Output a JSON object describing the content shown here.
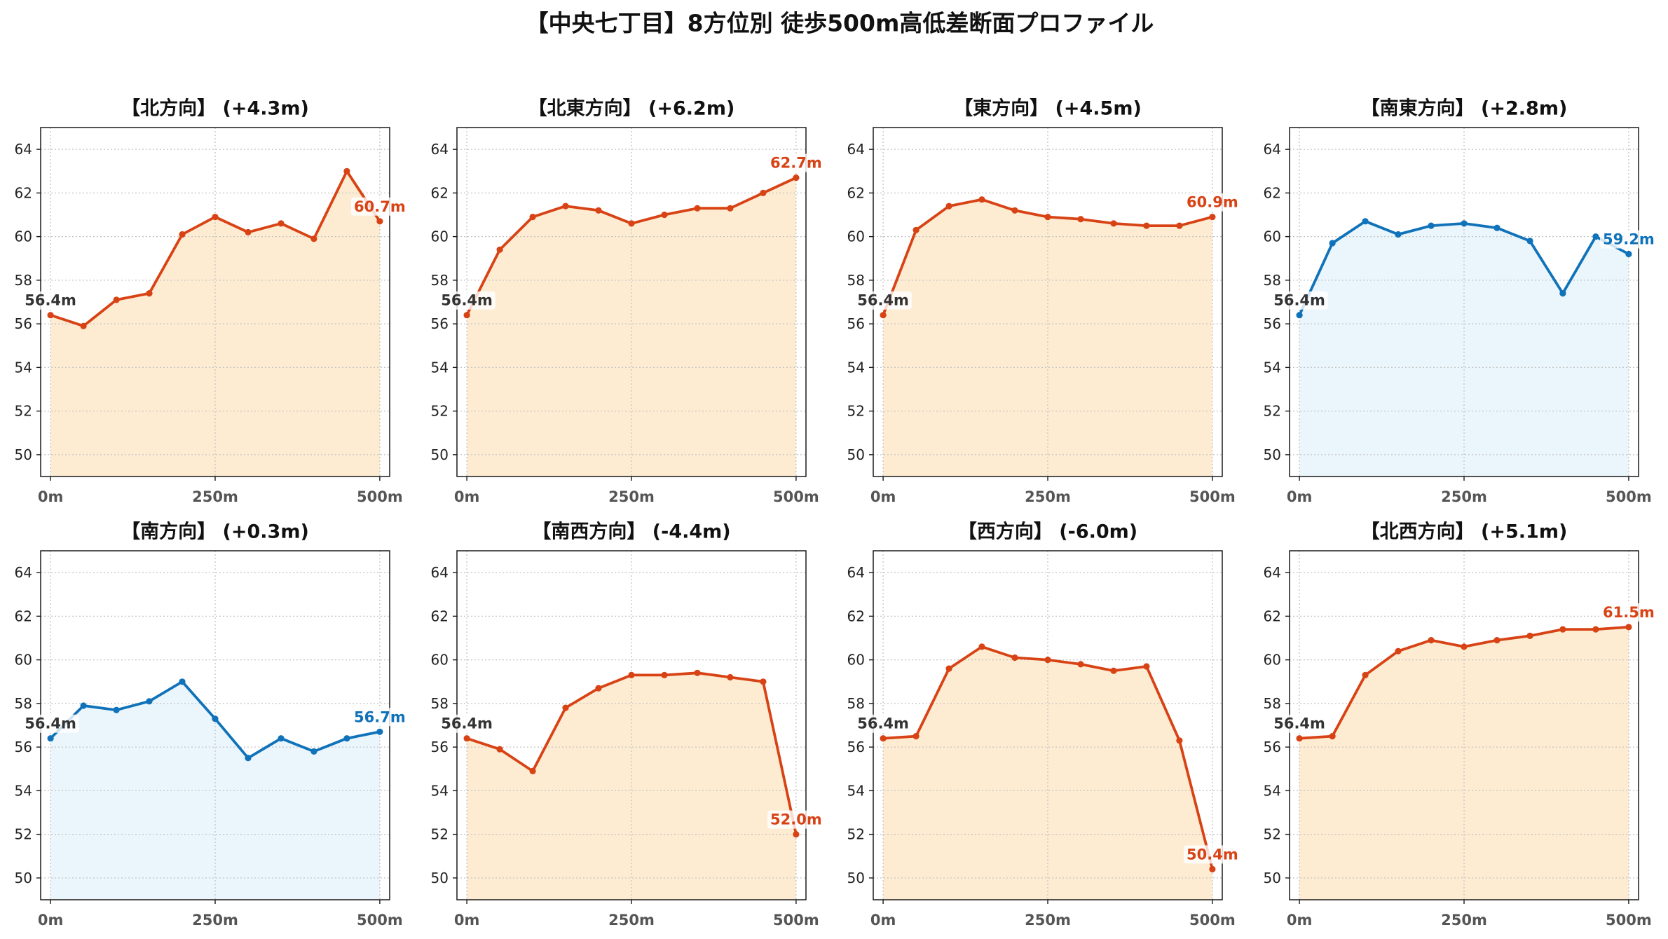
{
  "title": "【中央七丁目】8方位別 徒歩500m高低差断面プロファイル",
  "chart_data": [
    {
      "type": "area",
      "title": "【北方向】 (+4.3m)",
      "x": [
        0,
        50,
        100,
        150,
        200,
        250,
        300,
        350,
        400,
        450,
        500
      ],
      "values": [
        56.4,
        55.9,
        57.1,
        57.4,
        60.1,
        60.9,
        60.2,
        60.6,
        59.9,
        63.0,
        60.7
      ],
      "xlim": [
        -15,
        515
      ],
      "ylim": [
        49,
        65
      ],
      "x_ticks": [
        0,
        250,
        500
      ],
      "x_tick_labels": [
        "0m",
        "250m",
        "500m"
      ],
      "y_ticks": [
        50,
        52,
        54,
        56,
        58,
        60,
        62,
        64
      ],
      "start_label": "56.4m",
      "end_label": "60.7m",
      "color": "#d84315",
      "fill_color": "#fdecd2",
      "grid": true
    },
    {
      "type": "area",
      "title": "【北東方向】 (+6.2m)",
      "x": [
        0,
        50,
        100,
        150,
        200,
        250,
        300,
        350,
        400,
        450,
        500
      ],
      "values": [
        56.4,
        59.4,
        60.9,
        61.4,
        61.2,
        60.6,
        61.0,
        61.3,
        61.3,
        62.0,
        62.7
      ],
      "xlim": [
        -15,
        515
      ],
      "ylim": [
        49,
        65
      ],
      "x_ticks": [
        0,
        250,
        500
      ],
      "x_tick_labels": [
        "0m",
        "250m",
        "500m"
      ],
      "y_ticks": [
        50,
        52,
        54,
        56,
        58,
        60,
        62,
        64
      ],
      "start_label": "56.4m",
      "end_label": "62.7m",
      "color": "#d84315",
      "fill_color": "#fdecd2",
      "grid": true
    },
    {
      "type": "area",
      "title": "【東方向】 (+4.5m)",
      "x": [
        0,
        50,
        100,
        150,
        200,
        250,
        300,
        350,
        400,
        450,
        500
      ],
      "values": [
        56.4,
        60.3,
        61.4,
        61.7,
        61.2,
        60.9,
        60.8,
        60.6,
        60.5,
        60.5,
        60.9
      ],
      "xlim": [
        -15,
        515
      ],
      "ylim": [
        49,
        65
      ],
      "x_ticks": [
        0,
        250,
        500
      ],
      "x_tick_labels": [
        "0m",
        "250m",
        "500m"
      ],
      "y_ticks": [
        50,
        52,
        54,
        56,
        58,
        60,
        62,
        64
      ],
      "start_label": "56.4m",
      "end_label": "60.9m",
      "color": "#d84315",
      "fill_color": "#fdecd2",
      "grid": true
    },
    {
      "type": "area",
      "title": "【南東方向】 (+2.8m)",
      "x": [
        0,
        50,
        100,
        150,
        200,
        250,
        300,
        350,
        400,
        450,
        500
      ],
      "values": [
        56.4,
        59.7,
        60.7,
        60.1,
        60.5,
        60.6,
        60.4,
        59.8,
        57.4,
        60.0,
        59.2
      ],
      "xlim": [
        -15,
        515
      ],
      "ylim": [
        49,
        65
      ],
      "x_ticks": [
        0,
        250,
        500
      ],
      "x_tick_labels": [
        "0m",
        "250m",
        "500m"
      ],
      "y_ticks": [
        50,
        52,
        54,
        56,
        58,
        60,
        62,
        64
      ],
      "start_label": "56.4m",
      "end_label": "59.2m",
      "color": "#1072b9",
      "fill_color": "#eaf6fc",
      "grid": true
    },
    {
      "type": "area",
      "title": "【南方向】 (+0.3m)",
      "x": [
        0,
        50,
        100,
        150,
        200,
        250,
        300,
        350,
        400,
        450,
        500
      ],
      "values": [
        56.4,
        57.9,
        57.7,
        58.1,
        59.0,
        57.3,
        55.5,
        56.4,
        55.8,
        56.4,
        56.7
      ],
      "xlim": [
        -15,
        515
      ],
      "ylim": [
        49,
        65
      ],
      "x_ticks": [
        0,
        250,
        500
      ],
      "x_tick_labels": [
        "0m",
        "250m",
        "500m"
      ],
      "y_ticks": [
        50,
        52,
        54,
        56,
        58,
        60,
        62,
        64
      ],
      "start_label": "56.4m",
      "end_label": "56.7m",
      "color": "#1072b9",
      "fill_color": "#eaf6fc",
      "grid": true
    },
    {
      "type": "area",
      "title": "【南西方向】 (-4.4m)",
      "x": [
        0,
        50,
        100,
        150,
        200,
        250,
        300,
        350,
        400,
        450,
        500
      ],
      "values": [
        56.4,
        55.9,
        54.9,
        57.8,
        58.7,
        59.3,
        59.3,
        59.4,
        59.2,
        59.0,
        52.0
      ],
      "xlim": [
        -15,
        515
      ],
      "ylim": [
        49,
        65
      ],
      "x_ticks": [
        0,
        250,
        500
      ],
      "x_tick_labels": [
        "0m",
        "250m",
        "500m"
      ],
      "y_ticks": [
        50,
        52,
        54,
        56,
        58,
        60,
        62,
        64
      ],
      "start_label": "56.4m",
      "end_label": "52.0m",
      "color": "#d84315",
      "fill_color": "#fdecd2",
      "grid": true
    },
    {
      "type": "area",
      "title": "【西方向】 (-6.0m)",
      "x": [
        0,
        50,
        100,
        150,
        200,
        250,
        300,
        350,
        400,
        450,
        500
      ],
      "values": [
        56.4,
        56.5,
        59.6,
        60.6,
        60.1,
        60.0,
        59.8,
        59.5,
        59.7,
        56.3,
        50.4
      ],
      "xlim": [
        -15,
        515
      ],
      "ylim": [
        49,
        65
      ],
      "x_ticks": [
        0,
        250,
        500
      ],
      "x_tick_labels": [
        "0m",
        "250m",
        "500m"
      ],
      "y_ticks": [
        50,
        52,
        54,
        56,
        58,
        60,
        62,
        64
      ],
      "start_label": "56.4m",
      "end_label": "50.4m",
      "color": "#d84315",
      "fill_color": "#fdecd2",
      "grid": true
    },
    {
      "type": "area",
      "title": "【北西方向】 (+5.1m)",
      "x": [
        0,
        50,
        100,
        150,
        200,
        250,
        300,
        350,
        400,
        450,
        500
      ],
      "values": [
        56.4,
        56.5,
        59.3,
        60.4,
        60.9,
        60.6,
        60.9,
        61.1,
        61.4,
        61.4,
        61.5
      ],
      "xlim": [
        -15,
        515
      ],
      "ylim": [
        49,
        65
      ],
      "x_ticks": [
        0,
        250,
        500
      ],
      "x_tick_labels": [
        "0m",
        "250m",
        "500m"
      ],
      "y_ticks": [
        50,
        52,
        54,
        56,
        58,
        60,
        62,
        64
      ],
      "start_label": "56.4m",
      "end_label": "61.5m",
      "color": "#d84315",
      "fill_color": "#fdecd2",
      "grid": true
    }
  ]
}
